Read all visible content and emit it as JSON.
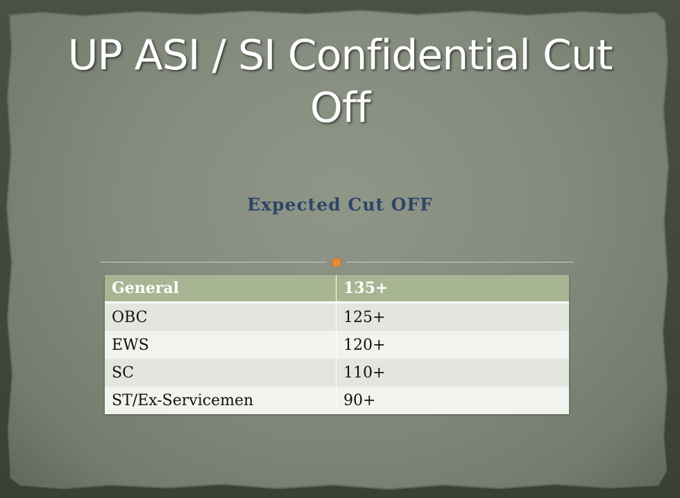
{
  "slide": {
    "title": "UP ASI / SI Confidential Cut Off",
    "subtitle": "Expected Cut OFF"
  },
  "table": {
    "rows": [
      {
        "category": "General",
        "score": "135+"
      },
      {
        "category": "OBC",
        "score": "125+"
      },
      {
        "category": "EWS",
        "score": "120+"
      },
      {
        "category": "SC",
        "score": "110+"
      },
      {
        "category": "ST/Ex-Servicemen",
        "score": "90+"
      }
    ]
  },
  "colors": {
    "background": "#848b7d",
    "title": "#ffffff",
    "subtitle": "#2e4566",
    "accent_dot": "#e98a3a",
    "header_row": "#a8b593"
  }
}
